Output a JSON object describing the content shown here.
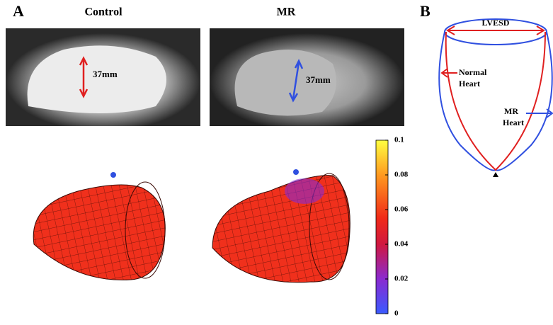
{
  "panel_a": {
    "label": "A",
    "columns": [
      "Control",
      "MR"
    ],
    "measurements": [
      "37mm",
      "37mm"
    ],
    "colorbar": {
      "lim": [
        0,
        0.1
      ],
      "ticks": [
        0.1,
        0.08,
        0.06,
        0.04,
        0.02,
        0
      ]
    }
  },
  "panel_b": {
    "label": "B",
    "lvesd": "LVESD",
    "normal": [
      "Normal",
      "Heart"
    ],
    "mr": [
      "MR",
      "Heart"
    ]
  }
}
